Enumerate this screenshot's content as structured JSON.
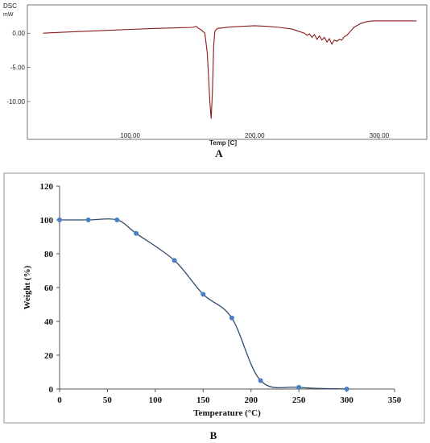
{
  "chart_data": [
    {
      "type": "line",
      "panel_label": "A",
      "ylabel_line1": "DSC",
      "ylabel_line2": "mW",
      "xlabel": "Temp [C]",
      "xlim": [
        20,
        335
      ],
      "ylim": [
        -14,
        2.5
      ],
      "x_tick_labels": [
        "100.00",
        "200.00",
        "300.00"
      ],
      "x_ticks": [
        100,
        200,
        300
      ],
      "y_tick_labels": [
        "0.00",
        "-5.00",
        "-10.00"
      ],
      "y_ticks": [
        0,
        -5,
        -10
      ],
      "color": "#8b1a1a",
      "series": [
        {
          "x": [
            30,
            40,
            60,
            80,
            100,
            120,
            140,
            150,
            153,
            155,
            157,
            160,
            162,
            164,
            165,
            166,
            167,
            168,
            170,
            175,
            180,
            190,
            200,
            210,
            220,
            230,
            235,
            240,
            242,
            244,
            246,
            248,
            250,
            252,
            254,
            256,
            258,
            260,
            262,
            264,
            266,
            268,
            270,
            272,
            274,
            276,
            278,
            280,
            285,
            290,
            295,
            300,
            310,
            320,
            330
          ],
          "y": [
            0.0,
            0.1,
            0.25,
            0.4,
            0.55,
            0.7,
            0.8,
            0.85,
            1.0,
            0.7,
            0.5,
            0.0,
            -3.0,
            -10.0,
            -12.5,
            -9.0,
            -2.0,
            0.3,
            0.7,
            0.8,
            0.9,
            1.0,
            1.1,
            1.0,
            0.85,
            0.6,
            0.3,
            0.0,
            -0.3,
            -0.1,
            -0.6,
            -0.2,
            -0.9,
            -0.4,
            -1.0,
            -0.6,
            -1.3,
            -0.8,
            -1.6,
            -1.0,
            -1.2,
            -0.9,
            -1.0,
            -0.5,
            -0.3,
            0.1,
            0.5,
            0.9,
            1.4,
            1.7,
            1.8,
            1.8,
            1.8,
            1.8,
            1.8
          ]
        }
      ]
    },
    {
      "type": "line",
      "panel_label": "B",
      "xlabel": "Temperature (°C)",
      "ylabel": "Weight (%)",
      "xlim": [
        0,
        350
      ],
      "ylim": [
        0,
        120
      ],
      "x_ticks": [
        0,
        50,
        100,
        150,
        200,
        250,
        300,
        350
      ],
      "x_tick_labels": [
        "0",
        "50",
        "100",
        "150",
        "200",
        "250",
        "300",
        "350"
      ],
      "y_ticks": [
        0,
        20,
        40,
        60,
        80,
        100,
        120
      ],
      "y_tick_labels": [
        "0",
        "20",
        "40",
        "60",
        "80",
        "100",
        "120"
      ],
      "line_color": "#2e4a6b",
      "marker_color": "#4a7fc1",
      "series": [
        {
          "x": [
            0,
            30,
            60,
            80,
            120,
            150,
            180,
            210,
            250,
            300
          ],
          "y": [
            100,
            100,
            100,
            92,
            76,
            56,
            42,
            5,
            1,
            0
          ]
        }
      ]
    }
  ]
}
